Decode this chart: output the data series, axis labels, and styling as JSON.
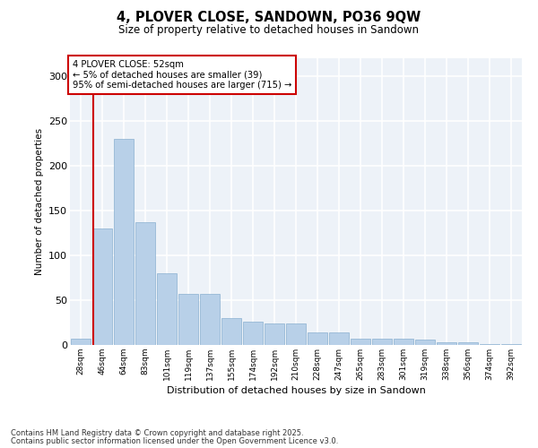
{
  "title": "4, PLOVER CLOSE, SANDOWN, PO36 9QW",
  "subtitle": "Size of property relative to detached houses in Sandown",
  "xlabel": "Distribution of detached houses by size in Sandown",
  "ylabel": "Number of detached properties",
  "categories": [
    "28sqm",
    "46sqm",
    "64sqm",
    "83sqm",
    "101sqm",
    "119sqm",
    "137sqm",
    "155sqm",
    "174sqm",
    "192sqm",
    "210sqm",
    "228sqm",
    "247sqm",
    "265sqm",
    "283sqm",
    "301sqm",
    "319sqm",
    "338sqm",
    "356sqm",
    "374sqm",
    "392sqm"
  ],
  "values": [
    7,
    130,
    230,
    137,
    80,
    57,
    57,
    30,
    26,
    24,
    24,
    14,
    14,
    7,
    7,
    7,
    6,
    3,
    3,
    1,
    1
  ],
  "bar_color": "#b8d0e8",
  "bar_edge_color": "#8ab0d0",
  "annotation_text_line1": "4 PLOVER CLOSE: 52sqm",
  "annotation_text_line2": "← 5% of detached houses are smaller (39)",
  "annotation_text_line3": "95% of semi-detached houses are larger (715) →",
  "annotation_box_color": "#cc0000",
  "red_line_x": 0.575,
  "ylim": [
    0,
    320
  ],
  "yticks": [
    0,
    50,
    100,
    150,
    200,
    250,
    300
  ],
  "bg_color": "#edf2f8",
  "grid_color": "#ffffff",
  "footer_line1": "Contains HM Land Registry data © Crown copyright and database right 2025.",
  "footer_line2": "Contains public sector information licensed under the Open Government Licence v3.0."
}
